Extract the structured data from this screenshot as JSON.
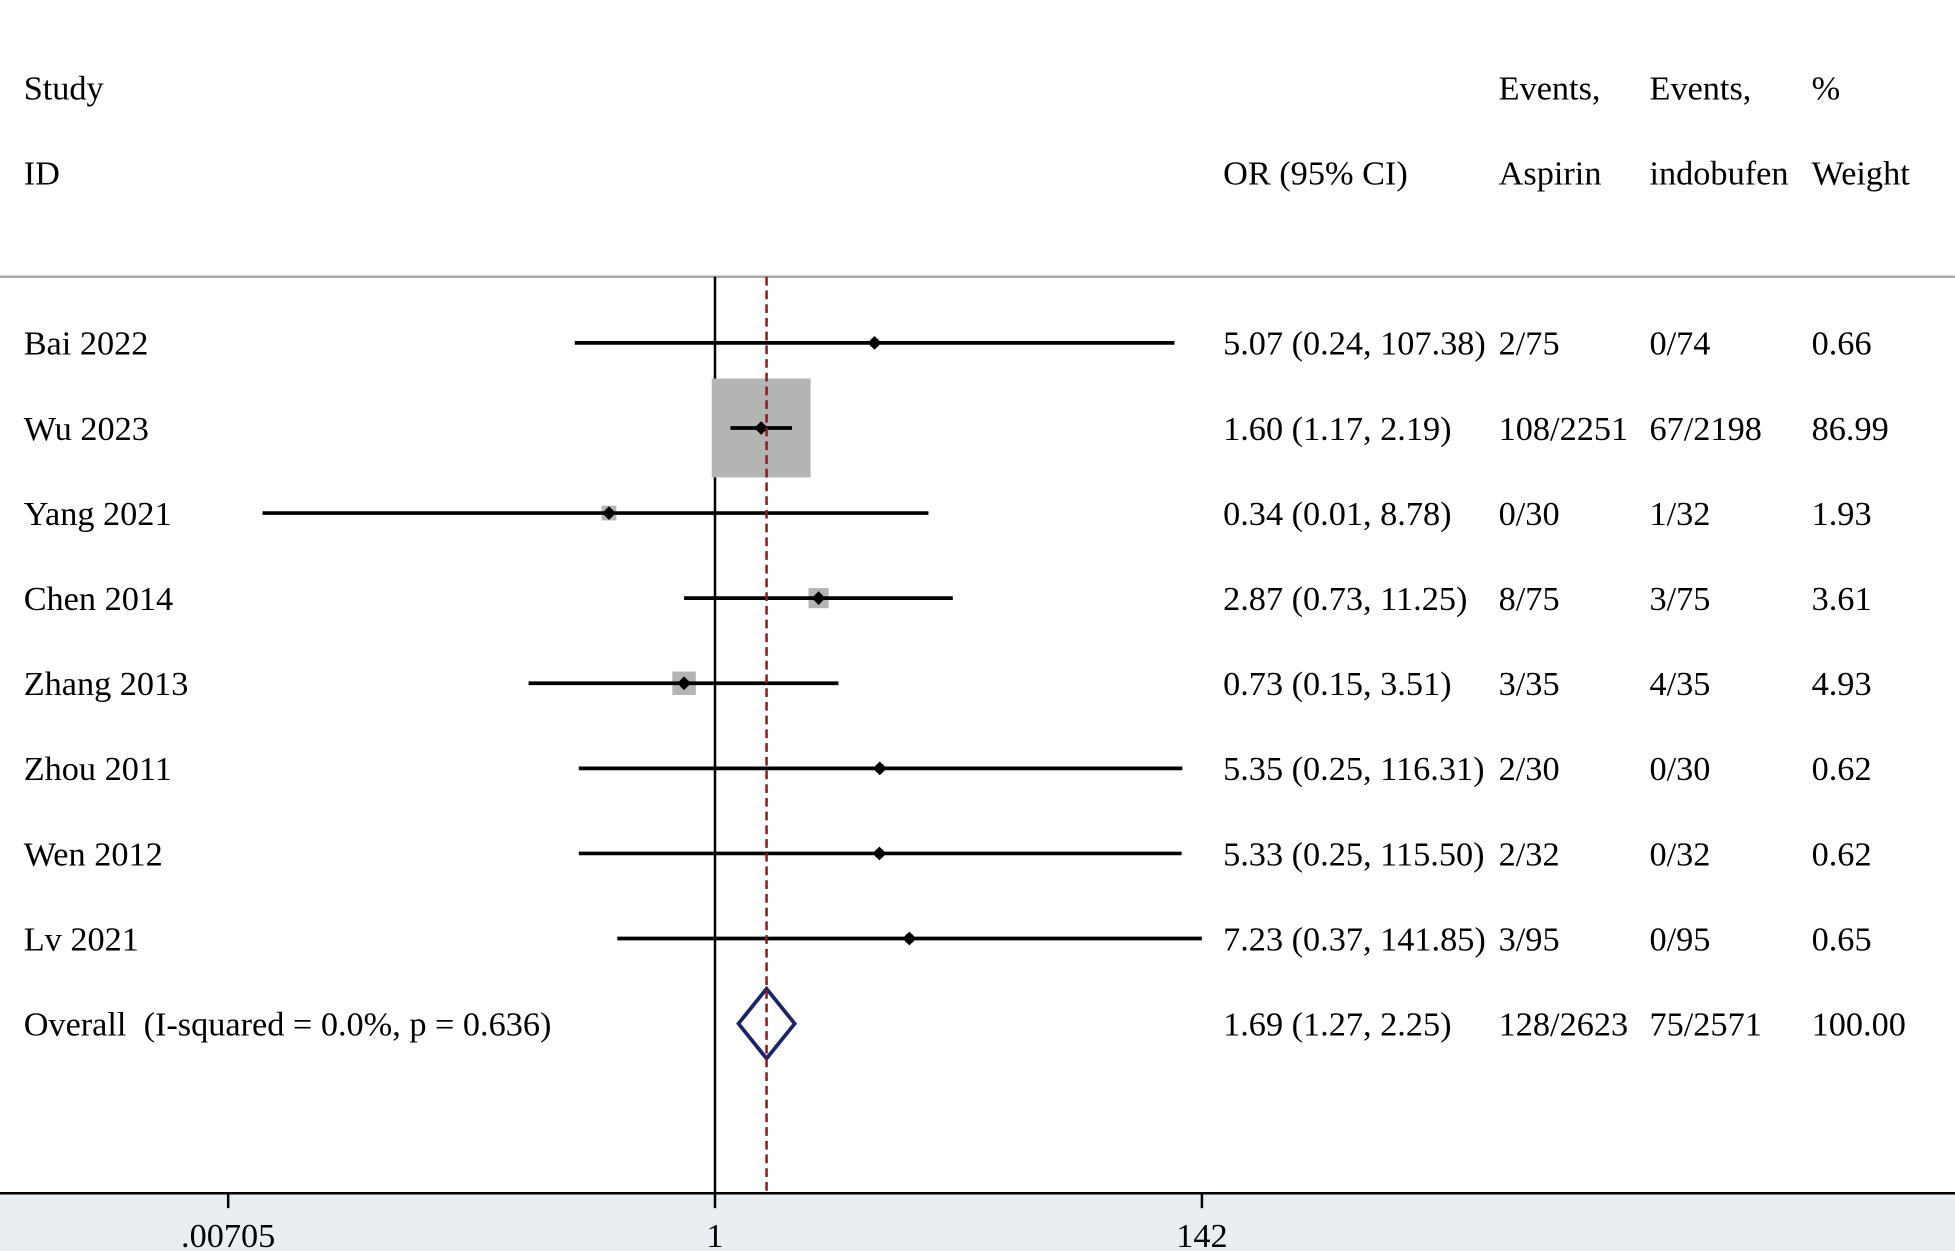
{
  "colors": {
    "box_fill": "#b4b4b4",
    "ci_line": "#000000",
    "point_marker": "#000000",
    "null_line": "#000000",
    "overall_line": "#8b1a1a",
    "overall_diamond": "#1c2468",
    "header_rule": "#a9a9a9",
    "axis": "#000000",
    "axis_band": "#e8eef1"
  },
  "header": {
    "study": "Study",
    "id": "ID",
    "or_ci": "OR (95% CI)",
    "events_aspirin_1": "Events,",
    "events_aspirin_2": "Aspirin",
    "events_indobufen_1": "Events,",
    "events_indobufen_2": "indobufen",
    "weight_1": "%",
    "weight_2": "Weight"
  },
  "chart_data": {
    "type": "scatter",
    "x_scale": "log",
    "xlim": [
      0.00705,
      142
    ],
    "x_ticks": [
      {
        "value": 0.00705,
        "label": ".00705"
      },
      {
        "value": 1,
        "label": "1"
      },
      {
        "value": 142,
        "label": "142"
      }
    ],
    "null_line": 1,
    "studies": [
      {
        "study": "Bai 2022",
        "or": 5.07,
        "ci_lower": 0.24,
        "ci_upper": 107.38,
        "or_ci": "5.07 (0.24, 107.38)",
        "events_aspirin": "2/75",
        "events_indobufen": "0/74",
        "weight": "0.66"
      },
      {
        "study": "Wu 2023",
        "or": 1.6,
        "ci_lower": 1.17,
        "ci_upper": 2.19,
        "or_ci": "1.60 (1.17, 2.19)",
        "events_aspirin": "108/2251",
        "events_indobufen": "67/2198",
        "weight": "86.99"
      },
      {
        "study": "Yang 2021",
        "or": 0.34,
        "ci_lower": 0.01,
        "ci_upper": 8.78,
        "or_ci": "0.34 (0.01, 8.78)",
        "events_aspirin": "0/30",
        "events_indobufen": "1/32",
        "weight": "1.93"
      },
      {
        "study": "Chen 2014",
        "or": 2.87,
        "ci_lower": 0.73,
        "ci_upper": 11.25,
        "or_ci": "2.87 (0.73, 11.25)",
        "events_aspirin": "8/75",
        "events_indobufen": "3/75",
        "weight": "3.61"
      },
      {
        "study": "Zhang 2013",
        "or": 0.73,
        "ci_lower": 0.15,
        "ci_upper": 3.51,
        "or_ci": "0.73 (0.15, 3.51)",
        "events_aspirin": "3/35",
        "events_indobufen": "4/35",
        "weight": "4.93"
      },
      {
        "study": "Zhou 2011",
        "or": 5.35,
        "ci_lower": 0.25,
        "ci_upper": 116.31,
        "or_ci": "5.35 (0.25, 116.31)",
        "events_aspirin": "2/30",
        "events_indobufen": "0/30",
        "weight": "0.62"
      },
      {
        "study": "Wen 2012",
        "or": 5.33,
        "ci_lower": 0.25,
        "ci_upper": 115.5,
        "or_ci": "5.33 (0.25, 115.50)",
        "events_aspirin": "2/32",
        "events_indobufen": "0/32",
        "weight": "0.62"
      },
      {
        "study": "Lv 2021",
        "or": 7.23,
        "ci_lower": 0.37,
        "ci_upper": 141.85,
        "or_ci": "7.23 (0.37, 141.85)",
        "events_aspirin": "3/95",
        "events_indobufen": "0/95",
        "weight": "0.65"
      }
    ],
    "overall": {
      "label": "Overall  (I-squared = 0.0%, p = 0.636)",
      "or": 1.69,
      "ci_lower": 1.27,
      "ci_upper": 2.25,
      "or_ci": "1.69 (1.27, 2.25)",
      "events_aspirin": "128/2623",
      "events_indobufen": "75/2571",
      "weight": "100.00"
    }
  }
}
